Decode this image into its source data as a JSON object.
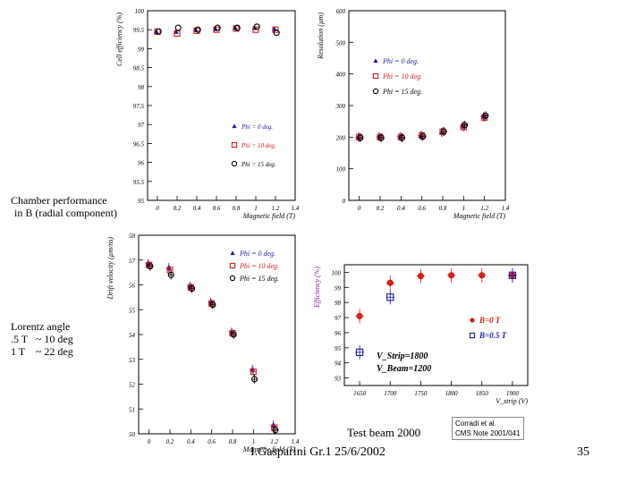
{
  "slide": {
    "chamber_note_line1": "Chamber performance",
    "chamber_note_line2": "in B (radial component)",
    "lorentz_line1": "Lorentz angle",
    "lorentz_line2": ".5 T   ~ 10 deg",
    "lorentz_line3": "1 T    ~ 22 deg",
    "test_beam": "Test beam 2000",
    "ref_line1": "Corradi et al.",
    "ref_line2": "CMS Note 2001/041",
    "footer": "I.Gasparini Gr.1 25/6/2002",
    "page_number": "35"
  },
  "colors": {
    "blue": "#1a1aa0",
    "red": "#d42020",
    "black": "#000000",
    "magenta": "#8a1a9a"
  },
  "chart_data": [
    {
      "id": "cell-efficiency",
      "type": "scatter",
      "xlabel": "Magnetic field (T)",
      "ylabel": "Cell efficiency (%)",
      "xlim": [
        -0.1,
        1.4
      ],
      "ylim": [
        95,
        100
      ],
      "x_ticks": [
        "0",
        "0.2",
        "0.4",
        "0.6",
        "0.8",
        "1",
        "1.2",
        "1.4"
      ],
      "y_ticks": [
        "95",
        "95.5",
        "96",
        "96.5",
        "97",
        "97.5",
        "98",
        "98.5",
        "99",
        "99.5",
        "100"
      ],
      "legend": [
        "Phi = 0 deg.",
        "Phi = 10 deg.",
        "Phi = 15 deg."
      ],
      "series": [
        {
          "name": "Phi = 0 deg.",
          "marker": "triangle",
          "x": [
            0,
            0.2,
            0.4,
            0.6,
            0.8,
            1.0,
            1.2
          ],
          "y": [
            99.45,
            99.45,
            99.5,
            99.52,
            99.55,
            99.55,
            99.52
          ]
        },
        {
          "name": "Phi = 10 deg.",
          "marker": "square",
          "x": [
            0,
            0.2,
            0.4,
            0.6,
            0.8,
            1.0,
            1.2
          ],
          "y": [
            99.45,
            99.4,
            99.47,
            99.5,
            99.53,
            99.5,
            99.5
          ]
        },
        {
          "name": "Phi = 15 deg.",
          "marker": "circle",
          "x": [
            0,
            0.2,
            0.4,
            0.6,
            0.8,
            1.0,
            1.2
          ],
          "y": [
            99.45,
            99.55,
            99.5,
            99.55,
            99.55,
            99.58,
            99.42
          ]
        }
      ]
    },
    {
      "id": "resolution",
      "type": "scatter",
      "xlabel": "Magnetic field (T)",
      "ylabel": "Resolution (µm)",
      "xlim": [
        -0.1,
        1.4
      ],
      "ylim": [
        0,
        600
      ],
      "x_ticks": [
        "0",
        "0.2",
        "0.4",
        "0.6",
        "0.8",
        "1",
        "1.2",
        "1.4"
      ],
      "y_ticks": [
        "0",
        "100",
        "200",
        "300",
        "400",
        "500",
        "600"
      ],
      "legend": [
        "Phi = 0 deg.",
        "Phi = 10 deg.",
        "Phi = 15 deg."
      ],
      "series": [
        {
          "name": "Phi = 0 deg.",
          "marker": "triangle",
          "x": [
            0,
            0.2,
            0.4,
            0.6,
            0.8,
            1.0,
            1.2
          ],
          "y": [
            200,
            202,
            202,
            205,
            215,
            235,
            265
          ]
        },
        {
          "name": "Phi = 10 deg.",
          "marker": "square",
          "x": [
            0,
            0.2,
            0.4,
            0.6,
            0.8,
            1.0,
            1.2
          ],
          "y": [
            200,
            200,
            200,
            205,
            217,
            232,
            262
          ]
        },
        {
          "name": "Phi = 15 deg.",
          "marker": "circle",
          "x": [
            0,
            0.2,
            0.4,
            0.6,
            0.8,
            1.0,
            1.2
          ],
          "y": [
            198,
            198,
            198,
            202,
            218,
            238,
            268
          ]
        }
      ]
    },
    {
      "id": "drift-velocity",
      "type": "scatter",
      "xlabel": "Magnetic field (T)",
      "ylabel": "Drift velocity (µm/ns)",
      "xlim": [
        -0.1,
        1.4
      ],
      "ylim": [
        50,
        58
      ],
      "x_ticks": [
        "0",
        "0.2",
        "0.4",
        "0.6",
        "0.8",
        "1",
        "1.2",
        "1.4"
      ],
      "y_ticks": [
        "50",
        "51",
        "52",
        "53",
        "54",
        "55",
        "56",
        "57",
        "58"
      ],
      "legend": [
        "Phi = 0 deg.",
        "Phi = 10 deg.",
        "Phi = 15 deg."
      ],
      "series": [
        {
          "name": "Phi = 0 deg.",
          "marker": "triangle",
          "x": [
            0,
            0.2,
            0.4,
            0.6,
            0.8,
            1.0,
            1.2
          ],
          "y": [
            56.85,
            56.7,
            55.95,
            55.3,
            54.1,
            52.6,
            50.35
          ]
        },
        {
          "name": "Phi = 10 deg.",
          "marker": "square",
          "x": [
            0,
            0.2,
            0.4,
            0.6,
            0.8,
            1.0,
            1.2
          ],
          "y": [
            56.8,
            56.6,
            55.9,
            55.25,
            54.05,
            52.5,
            50.25
          ]
        },
        {
          "name": "Phi = 15 deg.",
          "marker": "circle",
          "x": [
            0,
            0.2,
            0.4,
            0.6,
            0.8,
            1.0,
            1.2
          ],
          "y": [
            56.75,
            56.4,
            55.85,
            55.2,
            54.0,
            52.2,
            50.15
          ]
        }
      ]
    },
    {
      "id": "efficiency-vs-vstrip",
      "type": "scatter",
      "xlabel": "V_strip (V)",
      "ylabel": "Efficiency (%)",
      "xlim": [
        1625,
        1925
      ],
      "ylim": [
        92.5,
        100.5
      ],
      "x_ticks": [
        "1650",
        "1700",
        "1750",
        "1800",
        "1850",
        "1900"
      ],
      "y_ticks": [
        "93",
        "94",
        "95",
        "96",
        "97",
        "98",
        "99",
        "100"
      ],
      "legend": [
        "B=0   T",
        "B=0.5 T"
      ],
      "annotation": [
        "V_Strip=1800",
        "V_Beam=1200"
      ],
      "series": [
        {
          "name": "B=0   T",
          "marker": "filled-circle",
          "x": [
            1650,
            1700,
            1750,
            1800,
            1850,
            1900
          ],
          "y": [
            97.1,
            99.3,
            99.75,
            99.8,
            99.8,
            99.8
          ]
        },
        {
          "name": "B=0.5 T",
          "marker": "square",
          "x": [
            1650,
            1700,
            1900
          ],
          "y": [
            94.7,
            98.35,
            99.8
          ]
        }
      ]
    }
  ]
}
